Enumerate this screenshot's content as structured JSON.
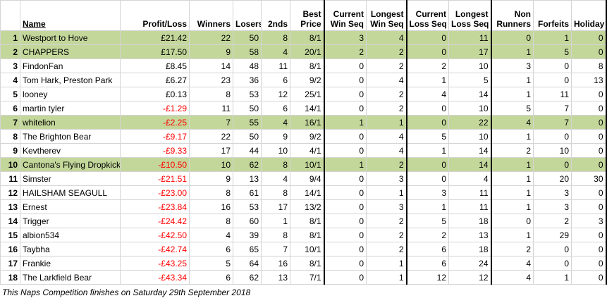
{
  "table": {
    "header": [
      [
        ""
      ],
      [
        "Name"
      ],
      [
        "Profit/Loss"
      ],
      [
        "Winners"
      ],
      [
        "Losers"
      ],
      [
        "2nds"
      ],
      [
        "Best",
        "Price"
      ],
      [
        "Current",
        "Win Seq"
      ],
      [
        "Longest",
        "Win Seq"
      ],
      [
        "Current",
        "Loss Seq"
      ],
      [
        "Longest",
        "Loss Seq"
      ],
      [
        "Non",
        "Runners"
      ],
      [
        "Forfeits"
      ],
      [
        "Holiday"
      ]
    ],
    "rows": [
      [
        "1",
        "Westport to Hove",
        "£21.42",
        "22",
        "50",
        "8",
        "8/1",
        "3",
        "4",
        "0",
        "11",
        "0",
        "1",
        "0"
      ],
      [
        "2",
        "CHAPPERS",
        "£17.50",
        "9",
        "58",
        "4",
        "20/1",
        "2",
        "2",
        "0",
        "17",
        "1",
        "5",
        "0"
      ],
      [
        "3",
        "FindonFan",
        "£8.45",
        "14",
        "48",
        "11",
        "8/1",
        "0",
        "2",
        "2",
        "10",
        "3",
        "0",
        "8"
      ],
      [
        "4",
        "Tom Hark, Preston Park",
        "£6.27",
        "23",
        "36",
        "6",
        "9/2",
        "0",
        "4",
        "1",
        "5",
        "1",
        "0",
        "13"
      ],
      [
        "5",
        "looney",
        "£0.13",
        "8",
        "53",
        "12",
        "25/1",
        "0",
        "2",
        "4",
        "14",
        "1",
        "11",
        "0"
      ],
      [
        "6",
        "martin tyler",
        "-£1.29",
        "11",
        "50",
        "6",
        "14/1",
        "0",
        "2",
        "0",
        "10",
        "5",
        "7",
        "0"
      ],
      [
        "7",
        "whitelion",
        "-£2.25",
        "7",
        "55",
        "4",
        "16/1",
        "1",
        "1",
        "0",
        "22",
        "4",
        "7",
        "0"
      ],
      [
        "8",
        "The Brighton Bear",
        "-£9.17",
        "22",
        "50",
        "9",
        "9/2",
        "0",
        "4",
        "5",
        "10",
        "1",
        "0",
        "0"
      ],
      [
        "9",
        "Kevtherev",
        "-£9.33",
        "17",
        "44",
        "10",
        "4/1",
        "0",
        "4",
        "1",
        "14",
        "2",
        "10",
        "0"
      ],
      [
        "10",
        "Cantona's Flying Dropkick",
        "-£10.50",
        "10",
        "62",
        "8",
        "10/1",
        "1",
        "2",
        "0",
        "14",
        "1",
        "0",
        "0"
      ],
      [
        "11",
        "Simster",
        "-£21.51",
        "9",
        "13",
        "4",
        "9/4",
        "0",
        "3",
        "0",
        "4",
        "1",
        "20",
        "30"
      ],
      [
        "12",
        "HAILSHAM SEAGULL",
        "-£23.00",
        "8",
        "61",
        "8",
        "14/1",
        "0",
        "1",
        "3",
        "11",
        "1",
        "3",
        "0"
      ],
      [
        "13",
        "Ernest",
        "-£23.84",
        "16",
        "53",
        "17",
        "13/2",
        "0",
        "3",
        "1",
        "11",
        "1",
        "3",
        "0"
      ],
      [
        "14",
        "Trigger",
        "-£24.42",
        "8",
        "60",
        "1",
        "8/1",
        "0",
        "2",
        "5",
        "18",
        "0",
        "2",
        "3"
      ],
      [
        "15",
        "albion534",
        "-£42.50",
        "4",
        "39",
        "8",
        "8/1",
        "0",
        "2",
        "2",
        "13",
        "1",
        "29",
        "0"
      ],
      [
        "16",
        "Taybha",
        "-£42.74",
        "6",
        "65",
        "7",
        "10/1",
        "0",
        "2",
        "6",
        "18",
        "2",
        "0",
        "0"
      ],
      [
        "17",
        "Frankie",
        "-£43.25",
        "5",
        "64",
        "16",
        "8/1",
        "0",
        "1",
        "6",
        "24",
        "4",
        "0",
        "0"
      ],
      [
        "18",
        "The Larkfield Bear",
        "-£43.34",
        "6",
        "62",
        "13",
        "7/1",
        "0",
        "1",
        "12",
        "12",
        "4",
        "1",
        "0"
      ]
    ],
    "highlighted_rows": [
      0,
      1,
      6,
      9
    ],
    "highlight_color": "#c4d79b",
    "negative_color": "#ff0000"
  },
  "footer": "This Naps Competition finishes on Saturday 29th September 2018"
}
